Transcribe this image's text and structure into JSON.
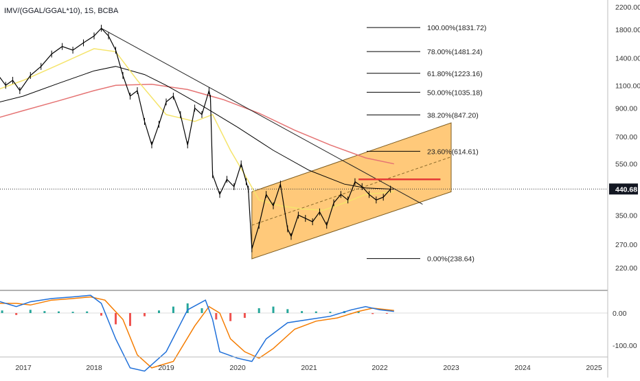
{
  "header": {
    "symbol_line": "IMV/(GGAL/GGAL*10), 1S, BCBA"
  },
  "colors": {
    "background": "#ffffff",
    "candle": "#000000",
    "ema_short": "#f5e46b",
    "ema_mid": "#000000",
    "ema_long": "#e57373",
    "channel_fill": "#ffb74d",
    "channel_edge": "#7a5a1e",
    "resistance": "#e53935",
    "macd": "#1e6fd9",
    "signal": "#f57c00",
    "hist_pos": "#26a69a",
    "hist_neg": "#ef5350",
    "axis_text": "#333333",
    "price_badge_bg": "#131722",
    "price_badge_text": "#ffffff"
  },
  "chart_data": [
    {
      "type": "line",
      "name": "price",
      "x_ticks": [
        "2017",
        "2018",
        "2019",
        "2020",
        "2021",
        "2022",
        "2023",
        "2024",
        "2025"
      ],
      "y_ticks": [
        "2200.00",
        "1800.00",
        "1400.00",
        "1100.00",
        "900.00",
        "700.00",
        "550.00",
        "440.68",
        "350.00",
        "270.00",
        "220.00"
      ],
      "y_scale": "log",
      "current_price": "440.68",
      "current_price_value": 440.68,
      "fib_levels": [
        {
          "label": "100.00%(1831.72)",
          "value": 1831.72
        },
        {
          "label": "78.00%(1481.24)",
          "value": 1481.24
        },
        {
          "label": "61.80%(1223.16)",
          "value": 1223.16
        },
        {
          "label": "50.00%(1035.18)",
          "value": 1035.18
        },
        {
          "label": "38.20%(847.20)",
          "value": 847.2
        },
        {
          "label": "23.60%(614.61)",
          "value": 614.61
        },
        {
          "label": "0.00%(238.64)",
          "value": 238.64
        }
      ],
      "price_series": {
        "x": [
          2016.6,
          2016.75,
          2016.85,
          2016.95,
          2017.1,
          2017.25,
          2017.4,
          2017.55,
          2017.7,
          2017.85,
          2018.0,
          2018.1,
          2018.2,
          2018.3,
          2018.4,
          2018.5,
          2018.6,
          2018.7,
          2018.8,
          2018.9,
          2019.0,
          2019.1,
          2019.2,
          2019.3,
          2019.4,
          2019.5,
          2019.6,
          2019.62,
          2019.65,
          2019.75,
          2019.85,
          2019.95,
          2020.05,
          2020.12,
          2020.15,
          2020.2,
          2020.3,
          2020.4,
          2020.5,
          2020.6,
          2020.7,
          2020.75,
          2020.85,
          2020.95,
          2021.05,
          2021.15,
          2021.25,
          2021.35,
          2021.45,
          2021.55,
          2021.65,
          2021.75,
          2021.85,
          2021.95,
          2022.05,
          2022.15
        ],
        "y": [
          1250,
          1100,
          1150,
          1050,
          1200,
          1300,
          1450,
          1550,
          1500,
          1600,
          1700,
          1820,
          1700,
          1500,
          1200,
          1000,
          1050,
          800,
          650,
          780,
          950,
          1000,
          850,
          650,
          900,
          850,
          1050,
          980,
          500,
          420,
          480,
          450,
          550,
          470,
          440,
          260,
          320,
          420,
          380,
          460,
          310,
          290,
          350,
          340,
          330,
          360,
          320,
          390,
          420,
          400,
          470,
          450,
          420,
          400,
          410,
          440
        ]
      },
      "ema_short": {
        "x": [
          2016.6,
          2017.0,
          2017.5,
          2018.0,
          2018.3,
          2018.6,
          2019.0,
          2019.4,
          2019.65,
          2019.9,
          2020.1,
          2020.3,
          2020.6,
          2020.9,
          2021.2,
          2021.5,
          2021.8,
          2022.2
        ],
        "y": [
          1050,
          1150,
          1320,
          1520,
          1480,
          1150,
          850,
          800,
          850,
          620,
          500,
          400,
          380,
          370,
          365,
          390,
          420,
          430
        ]
      },
      "ema_mid": {
        "x": [
          2016.6,
          2017.0,
          2017.5,
          2018.0,
          2018.3,
          2018.7,
          2019.0,
          2019.5,
          2020.0,
          2020.5,
          2021.0,
          2021.5,
          2021.8,
          2022.2
        ],
        "y": [
          940,
          1000,
          1120,
          1250,
          1300,
          1210,
          1100,
          920,
          760,
          620,
          520,
          460,
          445,
          440
        ]
      },
      "ema_long": {
        "x": [
          2016.6,
          2017.0,
          2017.5,
          2018.0,
          2018.3,
          2018.8,
          2019.3,
          2019.8,
          2020.3,
          2020.8,
          2021.3,
          2021.8,
          2022.2
        ],
        "y": [
          820,
          880,
          960,
          1050,
          1100,
          1110,
          1060,
          970,
          860,
          740,
          650,
          580,
          550
        ]
      },
      "trendline": {
        "x": [
          2018.1,
          2022.6
        ],
        "y": [
          1820,
          385
        ]
      },
      "channel": {
        "lower": {
          "x": [
            2020.2,
            2023.0
          ],
          "y": [
            238,
            430
          ]
        },
        "upper": {
          "x": [
            2020.2,
            2023.0
          ],
          "y": [
            430,
            790
          ]
        },
        "mid": {
          "x": [
            2020.2,
            2023.0
          ],
          "y": [
            320,
            585
          ]
        }
      },
      "resistance": {
        "x": [
          2021.7,
          2022.85
        ],
        "y": [
          480,
          480
        ]
      }
    },
    {
      "type": "bar",
      "name": "macd",
      "y_ticks": [
        "0.00",
        "-100.00"
      ],
      "macd_line": {
        "x": [
          2016.6,
          2016.9,
          2017.1,
          2017.4,
          2017.7,
          2017.95,
          2018.1,
          2018.3,
          2018.5,
          2018.7,
          2019.0,
          2019.3,
          2019.55,
          2019.65,
          2019.75,
          2020.0,
          2020.2,
          2020.4,
          2020.7,
          2021.0,
          2021.3,
          2021.6,
          2021.8,
          2022.0,
          2022.2
        ],
        "y": [
          40,
          20,
          35,
          45,
          50,
          55,
          30,
          -80,
          -170,
          -180,
          -120,
          10,
          40,
          -20,
          -120,
          -140,
          -150,
          -80,
          -30,
          -20,
          -10,
          10,
          20,
          10,
          5
        ]
      },
      "signal_line": {
        "x": [
          2016.6,
          2016.9,
          2017.1,
          2017.4,
          2017.7,
          2017.95,
          2018.15,
          2018.4,
          2018.6,
          2018.8,
          2019.1,
          2019.4,
          2019.6,
          2019.75,
          2019.9,
          2020.1,
          2020.3,
          2020.5,
          2020.8,
          2021.1,
          2021.4,
          2021.7,
          2021.9,
          2022.2
        ],
        "y": [
          30,
          30,
          25,
          40,
          45,
          50,
          40,
          -20,
          -130,
          -170,
          -150,
          -40,
          20,
          0,
          -80,
          -120,
          -140,
          -110,
          -50,
          -25,
          -15,
          5,
          15,
          8
        ]
      },
      "histogram": {
        "x": [
          2016.7,
          2016.9,
          2017.1,
          2017.3,
          2017.5,
          2017.7,
          2017.9,
          2018.1,
          2018.3,
          2018.5,
          2018.7,
          2018.9,
          2019.1,
          2019.3,
          2019.5,
          2019.7,
          2019.9,
          2020.1,
          2020.3,
          2020.5,
          2020.7,
          2020.9,
          2021.1,
          2021.3,
          2021.5,
          2021.7,
          2021.9,
          2022.1
        ],
        "y": [
          8,
          -6,
          10,
          6,
          5,
          4,
          5,
          -8,
          -35,
          -40,
          -10,
          8,
          20,
          30,
          15,
          -20,
          -25,
          -15,
          15,
          20,
          12,
          6,
          5,
          4,
          6,
          5,
          -3,
          -2
        ]
      }
    }
  ]
}
